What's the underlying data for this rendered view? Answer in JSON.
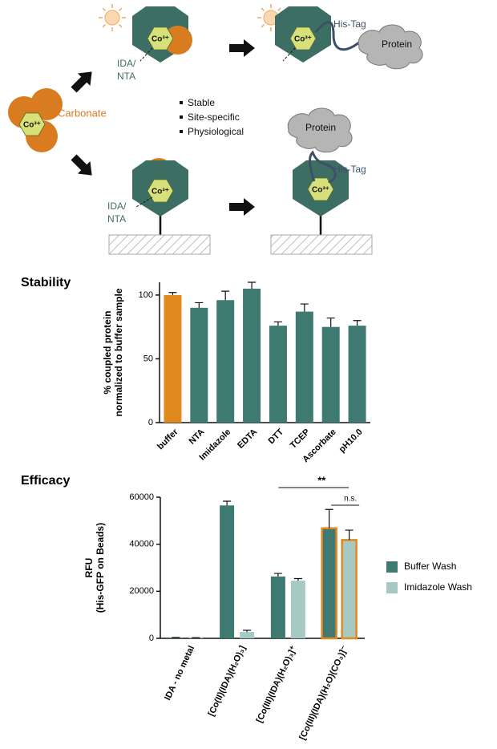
{
  "diagram": {
    "metal_labels": [
      "Co³⁺",
      "Co³⁺",
      "Co³⁺",
      "Co³⁺",
      "Co³⁺"
    ],
    "carbonate": "Carbonate",
    "ligand_top": [
      "IDA/",
      "NTA"
    ],
    "ligand_bottom": [
      "IDA/",
      "NTA"
    ],
    "his_tag_top": "His-Tag",
    "his_tag_bottom": "His-Tag",
    "protein_top": "Protein",
    "protein_bottom": "Protein",
    "bullets": [
      "Stable",
      "Site-specific",
      "Physiological"
    ]
  },
  "chart_data": [
    {
      "type": "bar",
      "title": "Stability",
      "y_label": [
        "% coupled protein",
        "normalized to buffer sample"
      ],
      "categories": [
        "buffer",
        "NTA",
        "Imidazole",
        "EDTA",
        "DTT",
        "TCEP",
        "Ascorbate",
        "pH10.0"
      ],
      "values": [
        100,
        90,
        96,
        105,
        76,
        87,
        75,
        76
      ],
      "errors": [
        2,
        4,
        7,
        5,
        3,
        6,
        7,
        4
      ],
      "colors": [
        "#e08a1e",
        "#3f7a72",
        "#3f7a72",
        "#3f7a72",
        "#3f7a72",
        "#3f7a72",
        "#3f7a72",
        "#3f7a72"
      ],
      "ylim": [
        0,
        110
      ],
      "yticks": [
        0,
        50,
        100
      ]
    },
    {
      "type": "grouped-bar",
      "title": "Efficacy",
      "y_label": [
        "RFU",
        "(His-GFP on Beads)"
      ],
      "categories": [
        "IDA - no metal",
        "[Co(II)(IDA)(H₂O)₃]",
        "[Co(III)(IDA)(H₂O)₃]⁺",
        "[Co(III)(IDA)(H₂O)(CO₃)]⁻"
      ],
      "series": [
        {
          "name": "Buffer Wash",
          "color": "#3f7a72",
          "values": [
            300,
            56500,
            26300,
            46800
          ],
          "errors": [
            100,
            1800,
            1300,
            8000
          ]
        },
        {
          "name": "Imidazole Wash",
          "color": "#a6c9c3",
          "values": [
            200,
            2700,
            24500,
            41800
          ],
          "errors": [
            100,
            700,
            900,
            4200
          ]
        }
      ],
      "edge_colors": [
        null,
        null,
        null,
        "#e08a1e"
      ],
      "annotations": [
        {
          "text": "**"
        },
        {
          "text": "n.s."
        }
      ],
      "ylim": [
        0,
        60000
      ],
      "yticks": [
        0,
        20000,
        40000,
        60000
      ]
    }
  ]
}
